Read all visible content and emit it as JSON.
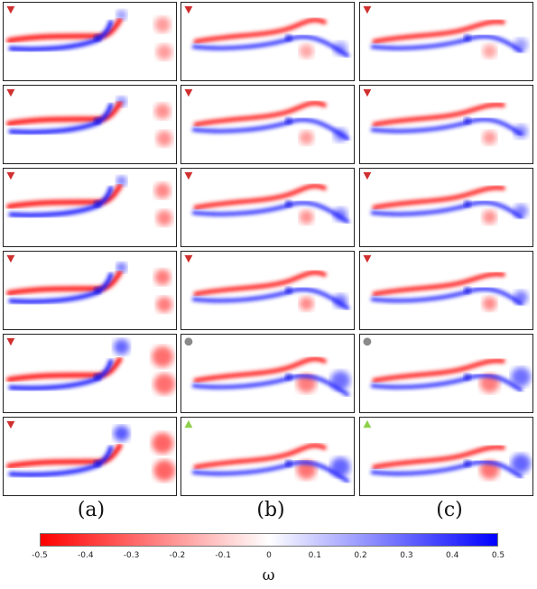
{
  "columns": [
    {
      "label": "(a)",
      "markers": [
        "triangle-down-red",
        "triangle-down-red",
        "triangle-down-red",
        "triangle-down-red",
        "triangle-down-red",
        "triangle-down-red"
      ]
    },
    {
      "label": "(b)",
      "markers": [
        "triangle-down-red",
        "triangle-down-red",
        "triangle-down-red",
        "triangle-down-red",
        "circle-gray",
        "triangle-up-green"
      ]
    },
    {
      "label": "(c)",
      "markers": [
        "triangle-down-red",
        "triangle-down-red",
        "triangle-down-red",
        "triangle-down-red",
        "circle-gray",
        "triangle-up-green"
      ]
    }
  ],
  "colorbar": {
    "label": "ω",
    "min": -0.5,
    "max": 0.5,
    "ticks": [
      "-0.5",
      "-0.4",
      "-0.3",
      "-0.2",
      "-0.1",
      "0",
      "0.1",
      "0.2",
      "0.3",
      "0.4",
      "0.5"
    ],
    "colors": {
      "negative": "#ff0000",
      "zero": "#ffffff",
      "positive": "#0000ff"
    }
  },
  "marker_colors": {
    "triangle-down-red": "#d03030",
    "circle-gray": "#8a8a8a",
    "triangle-up-green": "#8ed04a"
  }
}
